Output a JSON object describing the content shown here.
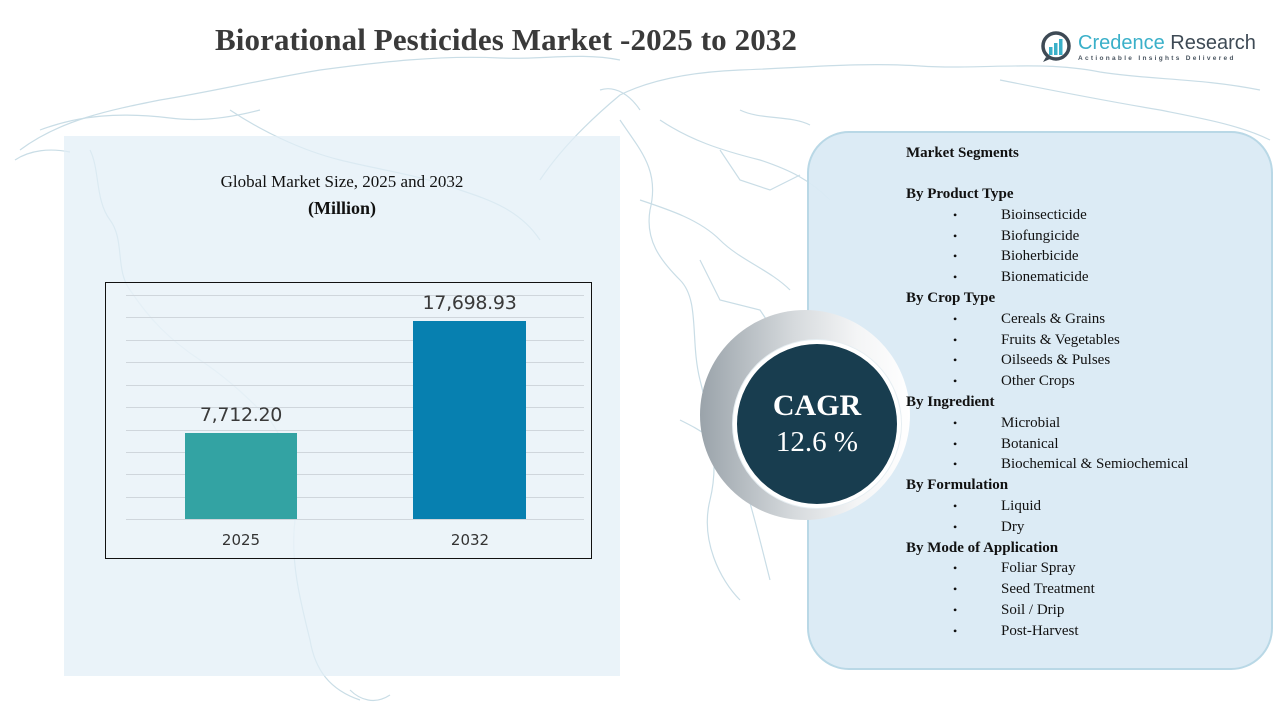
{
  "header": {
    "title": "Biorational Pesticides Market -2025 to 2032",
    "logo": {
      "name_part1": "Credence",
      "name_part2": " Research",
      "tagline": "Actionable Insights Delivered",
      "icon": "bar-chart-magnifier-icon",
      "colors": {
        "primary": "#3ab0c9",
        "secondary": "#3e4a55"
      }
    }
  },
  "chart_panel": {
    "title_line1": "Global Market Size, 2025 and 2032",
    "title_line2": "(Million)"
  },
  "chart_data": {
    "type": "bar",
    "title": "Global Market Size, 2025 and 2032",
    "subtitle": "(Million)",
    "categories": [
      "2025",
      "2032"
    ],
    "values": [
      7712.2,
      17698.93
    ],
    "value_labels": [
      "7,712.20",
      "17,698.93"
    ],
    "colors": [
      "#33a3a3",
      "#0780b0"
    ],
    "xlabel": "",
    "ylabel": "",
    "ylim": [
      0,
      20000
    ],
    "grid": true,
    "gridline_count": 11,
    "legend": "none"
  },
  "cagr": {
    "label": "CAGR",
    "value": "12.6 %",
    "color": "#183d4f"
  },
  "segments": {
    "title": "Market Segments",
    "groups": [
      {
        "label": "By Product Type",
        "items": [
          "Bioinsecticide",
          "Biofungicide",
          "Bioherbicide",
          "Bionematicide"
        ]
      },
      {
        "label": "By Crop Type",
        "items": [
          "Cereals & Grains",
          "Fruits & Vegetables",
          "Oilseeds & Pulses",
          "Other Crops"
        ]
      },
      {
        "label": "By Ingredient",
        "items": [
          "Microbial",
          "Botanical",
          "Biochemical & Semiochemical"
        ]
      },
      {
        "label": "By Formulation",
        "items": [
          "Liquid",
          "Dry"
        ]
      },
      {
        "label": "By Mode of Application",
        "items": [
          "Foliar Spray",
          "Seed Treatment",
          "Soil / Drip",
          "Post-Harvest"
        ]
      }
    ],
    "bullet": "•"
  }
}
